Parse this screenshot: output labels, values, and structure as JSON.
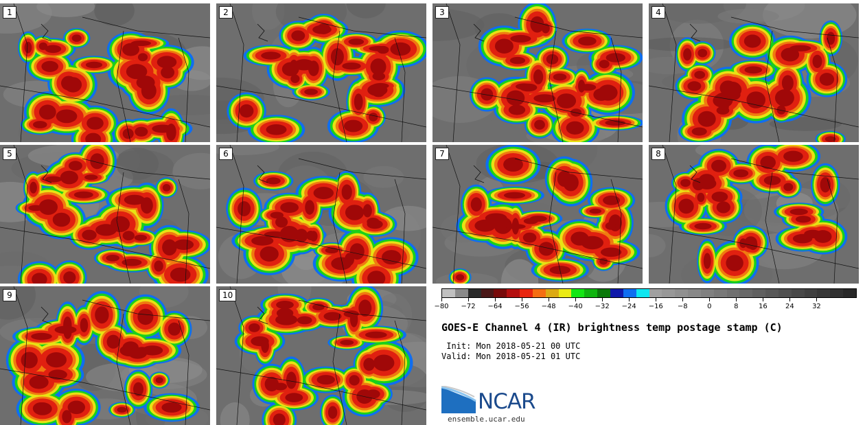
{
  "panels": [
    {
      "label": "1"
    },
    {
      "label": "2"
    },
    {
      "label": "3"
    },
    {
      "label": "4"
    },
    {
      "label": "5"
    },
    {
      "label": "6"
    },
    {
      "label": "7"
    },
    {
      "label": "8"
    },
    {
      "label": "9"
    },
    {
      "label": "10"
    }
  ],
  "colorbar": {
    "colors": [
      "#c0c0c0",
      "#8a8a8a",
      "#2a2a2a",
      "#4a1818",
      "#780a0a",
      "#b40f0f",
      "#e8260f",
      "#f56e12",
      "#dcaa14",
      "#eaea14",
      "#14e614",
      "#0fb40f",
      "#0a780a",
      "#0f19aa",
      "#0f6ef0",
      "#0fe6f0",
      "#a0a0a0",
      "#989898",
      "#909090",
      "#888888",
      "#808080",
      "#787878",
      "#707070",
      "#686868",
      "#606060",
      "#585858",
      "#505050",
      "#484848",
      "#404040",
      "#383838",
      "#303030",
      "#282828"
    ],
    "min": -80,
    "max": 44,
    "ticks": [
      "−80",
      "−72",
      "−64",
      "−56",
      "−48",
      "−40",
      "−32",
      "−24",
      "−16",
      "−8",
      "0",
      "8",
      "16",
      "24",
      "32"
    ],
    "tick_values": [
      -80,
      -72,
      -64,
      -56,
      -48,
      -40,
      -32,
      -24,
      -16,
      -8,
      0,
      8,
      16,
      24,
      32
    ]
  },
  "title": "GOES-E Channel 4 (IR) brightness temp postage stamp (C)",
  "init": " Init: Mon 2018-05-21 00 UTC",
  "valid": "Valid: Mon 2018-05-21 01 UTC",
  "logo": {
    "text": "NCAR",
    "site": "ensemble.ucar.edu"
  },
  "colors": {
    "storm_core": "#a00808",
    "storm_red": "#e02010",
    "storm_orange": "#f07a10",
    "storm_yellow": "#e8e214",
    "storm_green": "#1ad01a",
    "storm_blue": "#0f6ef0",
    "background": "#6e6e6e"
  }
}
